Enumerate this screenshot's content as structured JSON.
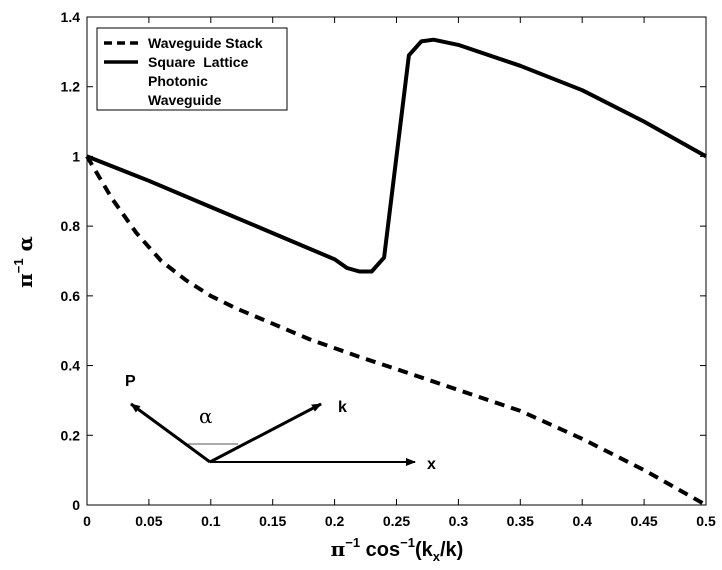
{
  "chart_data": {
    "type": "line",
    "xlabel": "π⁻¹ cos⁻¹(kx/k)",
    "xlabel_parts": {
      "pre": "π",
      "sup1": "−1",
      "mid": " cos",
      "sup2": "−1",
      "open": "(k",
      "sub": "x",
      "close": "/k)"
    },
    "ylabel": "π⁻¹ α",
    "ylabel_parts": {
      "pre": "π",
      "sup": "−1",
      "post": " α"
    },
    "xlim": [
      0,
      0.5
    ],
    "ylim": [
      0,
      1.4
    ],
    "xticks": [
      0,
      0.05,
      0.1,
      0.15,
      0.2,
      0.25,
      0.3,
      0.35,
      0.4,
      0.45,
      0.5
    ],
    "xtick_labels": [
      "0",
      "0.05",
      "0.1",
      "0.15",
      "0.2",
      "0.25",
      "0.3",
      "0.35",
      "0.4",
      "0.45",
      "0.5"
    ],
    "yticks": [
      0,
      0.2,
      0.4,
      0.6,
      0.8,
      1,
      1.2,
      1.4
    ],
    "ytick_labels": [
      "0",
      "0.2",
      "0.4",
      "0.6",
      "0.8",
      "1",
      "1.2",
      "1.4"
    ],
    "grid": false,
    "legend_position": "top-left",
    "series": [
      {
        "name": "Waveguide Stack",
        "style": "dashed",
        "x": [
          0,
          0.02,
          0.04,
          0.06,
          0.08,
          0.1,
          0.12,
          0.15,
          0.18,
          0.2,
          0.22,
          0.25,
          0.3,
          0.35,
          0.4,
          0.45,
          0.5
        ],
        "y": [
          1.0,
          0.88,
          0.78,
          0.7,
          0.645,
          0.6,
          0.565,
          0.52,
          0.475,
          0.45,
          0.425,
          0.39,
          0.33,
          0.27,
          0.19,
          0.1,
          0.0
        ]
      },
      {
        "name": "Square  Lattice",
        "name_line2": "Photonic",
        "name_line3": "Waveguide",
        "style": "solid",
        "x": [
          0,
          0.05,
          0.1,
          0.15,
          0.2,
          0.21,
          0.22,
          0.23,
          0.24,
          0.25,
          0.26,
          0.27,
          0.28,
          0.3,
          0.35,
          0.4,
          0.45,
          0.5
        ],
        "y": [
          1.0,
          0.93,
          0.855,
          0.78,
          0.705,
          0.68,
          0.67,
          0.67,
          0.71,
          1.0,
          1.29,
          1.33,
          1.335,
          1.32,
          1.26,
          1.19,
          1.1,
          1.0
        ]
      }
    ]
  },
  "inset": {
    "label_p": "P",
    "label_k": "k",
    "label_x": "x",
    "label_alpha": "α"
  },
  "colors": {
    "line": "#000000",
    "background": "#ffffff"
  }
}
